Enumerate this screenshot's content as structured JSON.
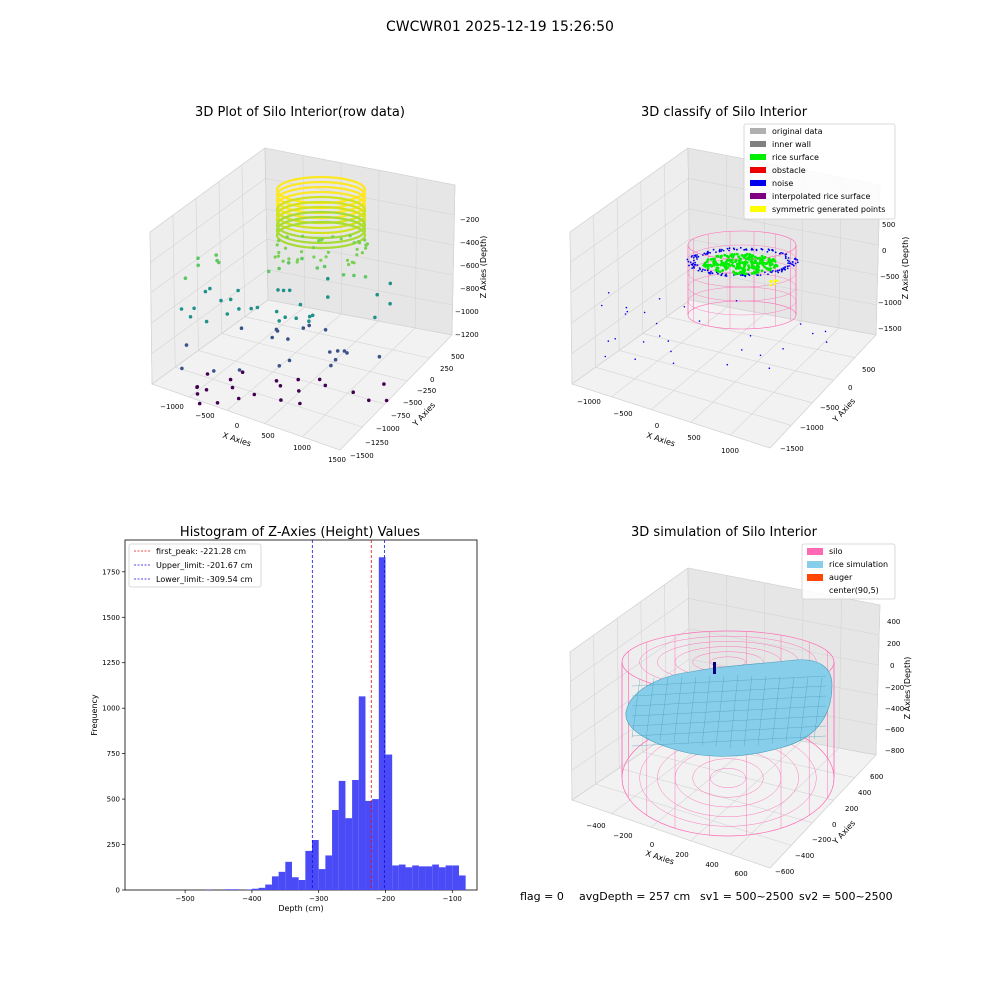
{
  "figure": {
    "title": "CWCWR01 2025-12-19 15:26:50",
    "footer": {
      "flag": "flag = 0",
      "avgdepth": "avgDepth = 257 cm",
      "sv1": "sv1 = 500~2500",
      "sv2": "sv2 = 500~2500"
    }
  },
  "chart_data": [
    {
      "type": "scatter",
      "projection": "3d",
      "title": "3D Plot of Silo Interior(row data)",
      "xlabel": "X Axies",
      "ylabel": "Y Axies",
      "zlabel": "Z Axies (Depth)",
      "x_ticks": [
        "−1000",
        "−500",
        "0",
        "500",
        "1000",
        "1500"
      ],
      "y_ticks": [
        "500",
        "250",
        "0",
        "−250",
        "−500",
        "−750",
        "−1000",
        "−1250",
        "−1500"
      ],
      "z_ticks": [
        "−200",
        "−400",
        "−600",
        "−800",
        "−1000",
        "−1200"
      ],
      "colormap": "viridis",
      "grid": true
    },
    {
      "type": "scatter",
      "projection": "3d",
      "title": "3D classify of Silo Interior",
      "xlabel": "X Axies",
      "ylabel": "Y Axies",
      "zlabel": "Z Axies (Depth)",
      "x_ticks": [
        "−1000",
        "−500",
        "0",
        "500",
        "1000"
      ],
      "y_ticks": [
        "500",
        "0",
        "−500",
        "−1000",
        "−1500"
      ],
      "z_ticks": [
        "500",
        "0",
        "−500",
        "−1000",
        "−1500"
      ],
      "legend_position": "top-right",
      "legend": [
        {
          "label": "original data",
          "color": "#b0b0b0"
        },
        {
          "label": "inner wall",
          "color": "#808080"
        },
        {
          "label": "rice surface",
          "color": "#00ee00"
        },
        {
          "label": "obstacle",
          "color": "#ee0000"
        },
        {
          "label": "noise",
          "color": "#0000ee"
        },
        {
          "label": "interpolated rice surface",
          "color": "#800080"
        },
        {
          "label": "symmetric generated points",
          "color": "#ffff00"
        }
      ],
      "grid": true
    },
    {
      "type": "bar",
      "title": "Histogram of Z-Axies (Height) Values",
      "xlabel": "Depth (cm)",
      "ylabel": "Frequency",
      "xlim": [
        -590,
        -63
      ],
      "ylim": [
        0,
        1925
      ],
      "x_ticks": [
        -500,
        -400,
        -300,
        -200,
        -100
      ],
      "y_ticks": [
        0,
        250,
        500,
        750,
        1000,
        1250,
        1500,
        1750
      ],
      "x_tick_labels": [
        "−500",
        "−400",
        "−300",
        "−200",
        "−100"
      ],
      "y_tick_labels": [
        "0",
        "250",
        "500",
        "750",
        "1000",
        "1250",
        "1500",
        "1750"
      ],
      "bin_width": 10,
      "bars": [
        {
          "x": -470,
          "y": 3
        },
        {
          "x": -440,
          "y": 4
        },
        {
          "x": -430,
          "y": 4
        },
        {
          "x": -410,
          "y": 3
        },
        {
          "x": -400,
          "y": 7
        },
        {
          "x": -390,
          "y": 12
        },
        {
          "x": -380,
          "y": 30
        },
        {
          "x": -370,
          "y": 75
        },
        {
          "x": -360,
          "y": 100
        },
        {
          "x": -350,
          "y": 155
        },
        {
          "x": -340,
          "y": 70
        },
        {
          "x": -330,
          "y": 55
        },
        {
          "x": -320,
          "y": 215
        },
        {
          "x": -310,
          "y": 275
        },
        {
          "x": -300,
          "y": 115
        },
        {
          "x": -290,
          "y": 190
        },
        {
          "x": -280,
          "y": 440
        },
        {
          "x": -270,
          "y": 600
        },
        {
          "x": -260,
          "y": 395
        },
        {
          "x": -250,
          "y": 605
        },
        {
          "x": -240,
          "y": 1065
        },
        {
          "x": -230,
          "y": 490
        },
        {
          "x": -220,
          "y": 500
        },
        {
          "x": -210,
          "y": 1830
        },
        {
          "x": -200,
          "y": 745
        },
        {
          "x": -190,
          "y": 135
        },
        {
          "x": -180,
          "y": 140
        },
        {
          "x": -170,
          "y": 125
        },
        {
          "x": -160,
          "y": 135
        },
        {
          "x": -150,
          "y": 130
        },
        {
          "x": -140,
          "y": 130
        },
        {
          "x": -130,
          "y": 140
        },
        {
          "x": -120,
          "y": 125
        },
        {
          "x": -110,
          "y": 135
        },
        {
          "x": -100,
          "y": 135
        },
        {
          "x": -90,
          "y": 80
        }
      ],
      "bar_color": "#4a4af6",
      "vlines": [
        {
          "label": "first_peak: -221.28 cm",
          "x": -221.28,
          "color": "#e01010"
        },
        {
          "label": "Upper_limit: -201.67 cm",
          "x": -201.67,
          "color": "#1010e0"
        },
        {
          "label": "Lower_limit: -309.54 cm",
          "x": -309.54,
          "color": "#1010e0"
        }
      ],
      "legend_position": "top-left",
      "grid": false
    },
    {
      "type": "surface",
      "projection": "3d",
      "title": "3D simulation of Silo Interior",
      "xlabel": "X Axies",
      "ylabel": "Y Axies",
      "zlabel": "Z Axies (Depth)",
      "x_ticks": [
        "−400",
        "−200",
        "0",
        "200",
        "400",
        "600"
      ],
      "y_ticks": [
        "600",
        "400",
        "200",
        "0",
        "−200",
        "−400",
        "−600"
      ],
      "z_ticks": [
        "400",
        "200",
        "0",
        "−200",
        "−400",
        "−600",
        "−800"
      ],
      "legend_position": "top-right",
      "legend": [
        {
          "label": "silo",
          "color": "#ff69b4"
        },
        {
          "label": "rice simulation",
          "color": "#87ceeb"
        },
        {
          "label": "auger",
          "color": "#ff4500"
        },
        {
          "label": "center(90,5)",
          "color": ""
        }
      ],
      "grid": true
    }
  ]
}
